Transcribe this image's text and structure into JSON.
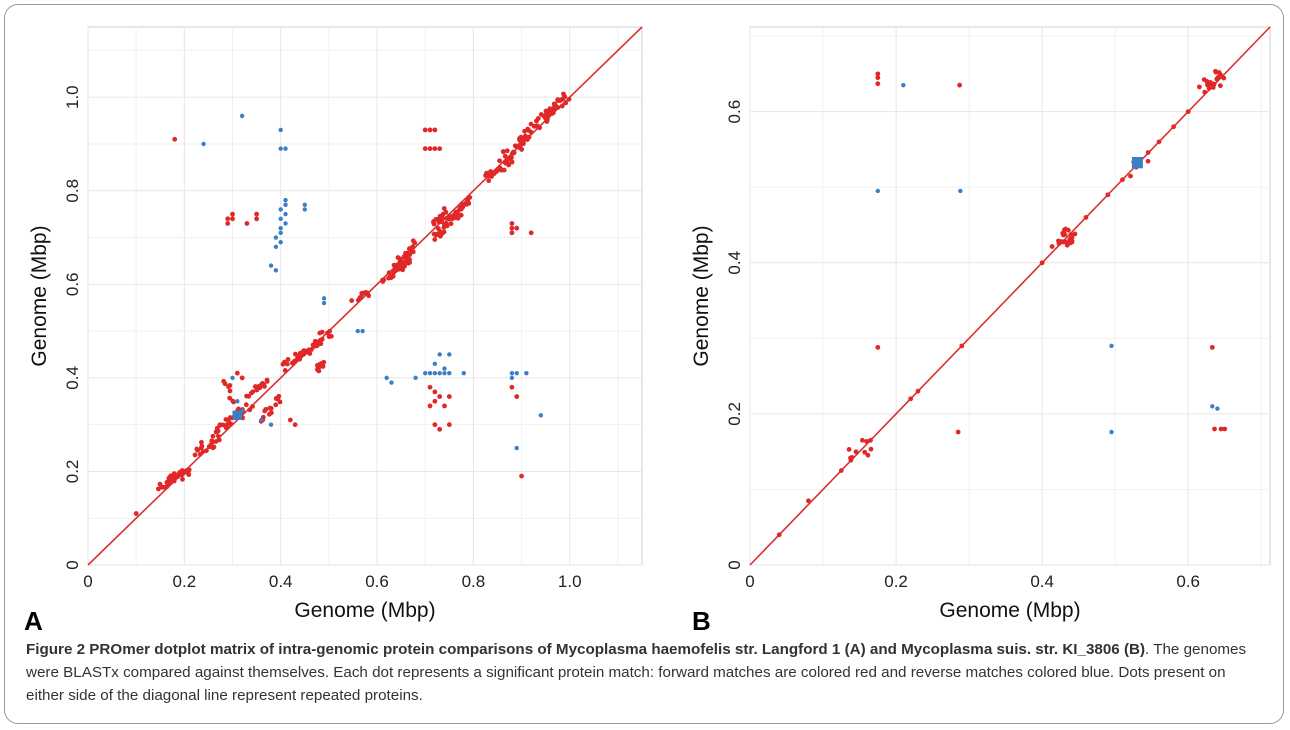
{
  "figure": {
    "caption_bold": "Figure 2 PROmer dotplot matrix of intra-genomic protein comparisons of Mycoplasma haemofelis str. Langford 1 (A) and Mycoplasma suis. str. KI_3806 (B)",
    "caption_text": ". The genomes were BLASTx compared against themselves. Each dot represents a significant protein match: forward matches are colored red and reverse matches colored blue. Dots present on either side of the diagonal line represent repeated proteins."
  },
  "colors": {
    "forward": "#e02828",
    "reverse": "#3a7fc8",
    "diagonal": "#d93030",
    "grid": "#e6e6e6"
  },
  "chart_data": [
    {
      "type": "scatter",
      "panel": "A",
      "xlabel": "Genome (Mbp)",
      "ylabel": "Genome (Mbp)",
      "xlim": [
        0,
        1.15
      ],
      "ylim": [
        0,
        1.15
      ],
      "xticks": [
        "0",
        "0.2",
        "0.4",
        "0.6",
        "0.8",
        "1.0"
      ],
      "yticks": [
        "0",
        "0.2",
        "0.4",
        "0.6",
        "0.8",
        "1.0"
      ],
      "tick_values": [
        0,
        0.2,
        0.4,
        0.6,
        0.8,
        1.0
      ],
      "grid": true,
      "diagonal": true,
      "forward_clusters": [
        [
          0.15,
          0.17,
          0.21,
          0.2,
          35
        ],
        [
          0.22,
          0.24,
          0.27,
          0.27,
          20
        ],
        [
          0.27,
          0.29,
          0.34,
          0.34,
          25
        ],
        [
          0.33,
          0.36,
          0.37,
          0.39,
          15
        ],
        [
          0.4,
          0.42,
          0.46,
          0.46,
          20
        ],
        [
          0.44,
          0.44,
          0.5,
          0.5,
          25
        ],
        [
          0.47,
          0.42,
          0.5,
          0.44,
          10
        ],
        [
          0.55,
          0.56,
          0.58,
          0.58,
          10
        ],
        [
          0.61,
          0.6,
          0.67,
          0.66,
          25
        ],
        [
          0.63,
          0.63,
          0.68,
          0.69,
          20
        ],
        [
          0.72,
          0.7,
          0.79,
          0.78,
          45
        ],
        [
          0.72,
          0.73,
          0.75,
          0.76,
          15
        ],
        [
          0.83,
          0.83,
          0.88,
          0.87,
          25
        ],
        [
          0.87,
          0.88,
          0.91,
          0.91,
          20
        ],
        [
          0.9,
          0.91,
          0.97,
          0.98,
          40
        ],
        [
          0.95,
          0.96,
          1.0,
          1.01,
          20
        ],
        [
          0.28,
          0.4,
          0.33,
          0.3,
          15
        ],
        [
          0.35,
          0.3,
          0.4,
          0.36,
          15
        ]
      ],
      "forward_points": [
        [
          0.18,
          0.91
        ],
        [
          0.29,
          0.74
        ],
        [
          0.29,
          0.73
        ],
        [
          0.3,
          0.75
        ],
        [
          0.3,
          0.74
        ],
        [
          0.33,
          0.73
        ],
        [
          0.35,
          0.75
        ],
        [
          0.35,
          0.74
        ],
        [
          0.7,
          0.93
        ],
        [
          0.71,
          0.93
        ],
        [
          0.72,
          0.93
        ],
        [
          0.7,
          0.89
        ],
        [
          0.71,
          0.89
        ],
        [
          0.72,
          0.89
        ],
        [
          0.73,
          0.89
        ],
        [
          0.88,
          0.73
        ],
        [
          0.88,
          0.72
        ],
        [
          0.89,
          0.72
        ],
        [
          0.88,
          0.71
        ],
        [
          0.92,
          0.71
        ],
        [
          0.71,
          0.38
        ],
        [
          0.72,
          0.37
        ],
        [
          0.73,
          0.36
        ],
        [
          0.72,
          0.35
        ],
        [
          0.71,
          0.34
        ],
        [
          0.72,
          0.3
        ],
        [
          0.73,
          0.29
        ],
        [
          0.75,
          0.3
        ],
        [
          0.75,
          0.36
        ],
        [
          0.74,
          0.34
        ],
        [
          0.88,
          0.38
        ],
        [
          0.89,
          0.36
        ],
        [
          0.9,
          0.19
        ],
        [
          0.32,
          0.4
        ],
        [
          0.31,
          0.41
        ],
        [
          0.42,
          0.31
        ],
        [
          0.43,
          0.3
        ],
        [
          0.1,
          0.11
        ]
      ],
      "reverse_points": [
        [
          0.24,
          0.9
        ],
        [
          0.32,
          0.96
        ],
        [
          0.4,
          0.93
        ],
        [
          0.4,
          0.89
        ],
        [
          0.41,
          0.89
        ],
        [
          0.45,
          0.77
        ],
        [
          0.45,
          0.76
        ],
        [
          0.41,
          0.78
        ],
        [
          0.41,
          0.77
        ],
        [
          0.4,
          0.76
        ],
        [
          0.41,
          0.75
        ],
        [
          0.4,
          0.74
        ],
        [
          0.41,
          0.73
        ],
        [
          0.4,
          0.72
        ],
        [
          0.4,
          0.71
        ],
        [
          0.39,
          0.7
        ],
        [
          0.39,
          0.63
        ],
        [
          0.38,
          0.64
        ],
        [
          0.4,
          0.69
        ],
        [
          0.39,
          0.68
        ],
        [
          0.49,
          0.57
        ],
        [
          0.49,
          0.56
        ],
        [
          0.56,
          0.5
        ],
        [
          0.57,
          0.5
        ],
        [
          0.62,
          0.4
        ],
        [
          0.63,
          0.39
        ],
        [
          0.68,
          0.4
        ],
        [
          0.7,
          0.41
        ],
        [
          0.71,
          0.41
        ],
        [
          0.72,
          0.41
        ],
        [
          0.73,
          0.41
        ],
        [
          0.74,
          0.41
        ],
        [
          0.75,
          0.41
        ],
        [
          0.74,
          0.42
        ],
        [
          0.73,
          0.45
        ],
        [
          0.75,
          0.45
        ],
        [
          0.72,
          0.43
        ],
        [
          0.78,
          0.41
        ],
        [
          0.88,
          0.41
        ],
        [
          0.89,
          0.41
        ],
        [
          0.91,
          0.41
        ],
        [
          0.88,
          0.4
        ],
        [
          0.94,
          0.32
        ],
        [
          0.89,
          0.25
        ],
        [
          0.3,
          0.4
        ],
        [
          0.31,
          0.35
        ],
        [
          0.36,
          0.31
        ],
        [
          0.38,
          0.3
        ],
        [
          0.31,
          0.32
        ],
        [
          0.32,
          0.33
        ]
      ],
      "reverse_block": [
        0.3,
        0.31,
        0.02
      ]
    },
    {
      "type": "scatter",
      "panel": "B",
      "xlabel": "Genome (Mbp)",
      "ylabel": "Genome (Mbp)",
      "xlim": [
        0,
        0.712
      ],
      "ylim": [
        0,
        0.712
      ],
      "xticks": [
        "0",
        "0.2",
        "0.4",
        "0.6"
      ],
      "yticks": [
        "0",
        "0.2",
        "0.4",
        "0.6"
      ],
      "tick_values": [
        0,
        0.2,
        0.4,
        0.6
      ],
      "grid": true,
      "diagonal": true,
      "forward_clusters": [
        [
          0.42,
          0.42,
          0.44,
          0.44,
          25
        ],
        [
          0.14,
          0.14,
          0.16,
          0.16,
          10
        ],
        [
          0.62,
          0.63,
          0.65,
          0.65,
          20
        ],
        [
          0.52,
          0.52,
          0.54,
          0.54,
          8
        ]
      ],
      "forward_points": [
        [
          0.175,
          0.65
        ],
        [
          0.175,
          0.645
        ],
        [
          0.175,
          0.637
        ],
        [
          0.287,
          0.635
        ],
        [
          0.175,
          0.288
        ],
        [
          0.285,
          0.176
        ],
        [
          0.633,
          0.288
        ],
        [
          0.636,
          0.18
        ],
        [
          0.645,
          0.18
        ],
        [
          0.65,
          0.18
        ],
        [
          0.04,
          0.04
        ],
        [
          0.08,
          0.085
        ],
        [
          0.125,
          0.125
        ],
        [
          0.165,
          0.165
        ],
        [
          0.22,
          0.22
        ],
        [
          0.23,
          0.23
        ],
        [
          0.29,
          0.29
        ],
        [
          0.4,
          0.4
        ],
        [
          0.46,
          0.46
        ],
        [
          0.49,
          0.49
        ],
        [
          0.56,
          0.56
        ],
        [
          0.6,
          0.6
        ],
        [
          0.58,
          0.58
        ],
        [
          0.51,
          0.51
        ]
      ],
      "reverse_points": [
        [
          0.21,
          0.635
        ],
        [
          0.175,
          0.495
        ],
        [
          0.288,
          0.495
        ],
        [
          0.495,
          0.29
        ],
        [
          0.495,
          0.176
        ],
        [
          0.633,
          0.21
        ],
        [
          0.64,
          0.207
        ]
      ],
      "reverse_block": [
        0.523,
        0.525,
        0.015
      ]
    }
  ]
}
